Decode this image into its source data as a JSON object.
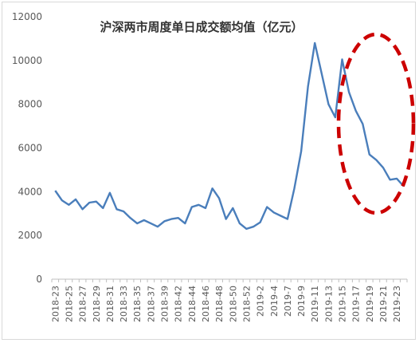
{
  "chart_data": {
    "type": "line",
    "title": "沪深两市周度单日成交额均值（亿元）",
    "xlabel": "",
    "ylabel": "",
    "ylim": [
      0,
      12000
    ],
    "yticks": [
      0,
      2000,
      4000,
      6000,
      8000,
      10000,
      12000
    ],
    "grid": false,
    "line_color": "#4a7ebb",
    "highlight": {
      "shape": "ellipse",
      "color": "#cc0000",
      "style": "dashed"
    },
    "x": [
      "2018-23",
      "2018-24",
      "2018-25",
      "2018-26",
      "2018-27",
      "2018-28",
      "2018-29",
      "2018-30",
      "2018-31",
      "2018-32",
      "2018-33",
      "2018-34",
      "2018-35",
      "2018-36",
      "2018-37",
      "2018-38",
      "2018-39",
      "2018-40",
      "2018-42",
      "2018-43",
      "2018-44",
      "2018-45",
      "2018-46",
      "2018-47",
      "2018-48",
      "2018-49",
      "2018-50",
      "2018-51",
      "2018-52",
      "2019-1",
      "2019-2",
      "2019-3",
      "2019-4",
      "2019-6",
      "2019-7",
      "2019-8",
      "2019-9",
      "2019-10",
      "2019-11",
      "2019-12",
      "2019-13",
      "2019-14",
      "2019-15",
      "2019-16",
      "2019-17",
      "2019-18",
      "2019-19",
      "2019-20",
      "2019-21",
      "2019-22",
      "2019-23",
      "2019-24"
    ],
    "x_tick_labels": [
      "2018-23",
      "",
      "2018-25",
      "",
      "2018-27",
      "",
      "2018-29",
      "",
      "2018-31",
      "",
      "2018-33",
      "",
      "2018-35",
      "",
      "2018-37",
      "",
      "2018-39",
      "",
      "2018-42",
      "",
      "2018-44",
      "",
      "2018-46",
      "",
      "2018-48",
      "",
      "2018-50",
      "",
      "2018-52",
      "",
      "2019-2",
      "",
      "2019-4",
      "",
      "2019-7",
      "",
      "2019-9",
      "",
      "2019-11",
      "",
      "2019-13",
      "",
      "2019-15",
      "",
      "2019-17",
      "",
      "2019-19",
      "",
      "2019-21",
      "",
      "2019-23",
      ""
    ],
    "values": [
      4050,
      3600,
      3400,
      3650,
      3200,
      3500,
      3550,
      3250,
      3950,
      3200,
      3100,
      2800,
      2550,
      2700,
      2550,
      2400,
      2650,
      2750,
      2800,
      2550,
      3300,
      3400,
      3250,
      4150,
      3700,
      2750,
      3250,
      2550,
      2300,
      2400,
      2600,
      3300,
      3050,
      2900,
      2750,
      4150,
      5850,
      8800,
      10800,
      9400,
      8000,
      7400,
      10050,
      8550,
      7700,
      7100,
      5700,
      5450,
      5100,
      4550,
      4600,
      4250
    ]
  }
}
